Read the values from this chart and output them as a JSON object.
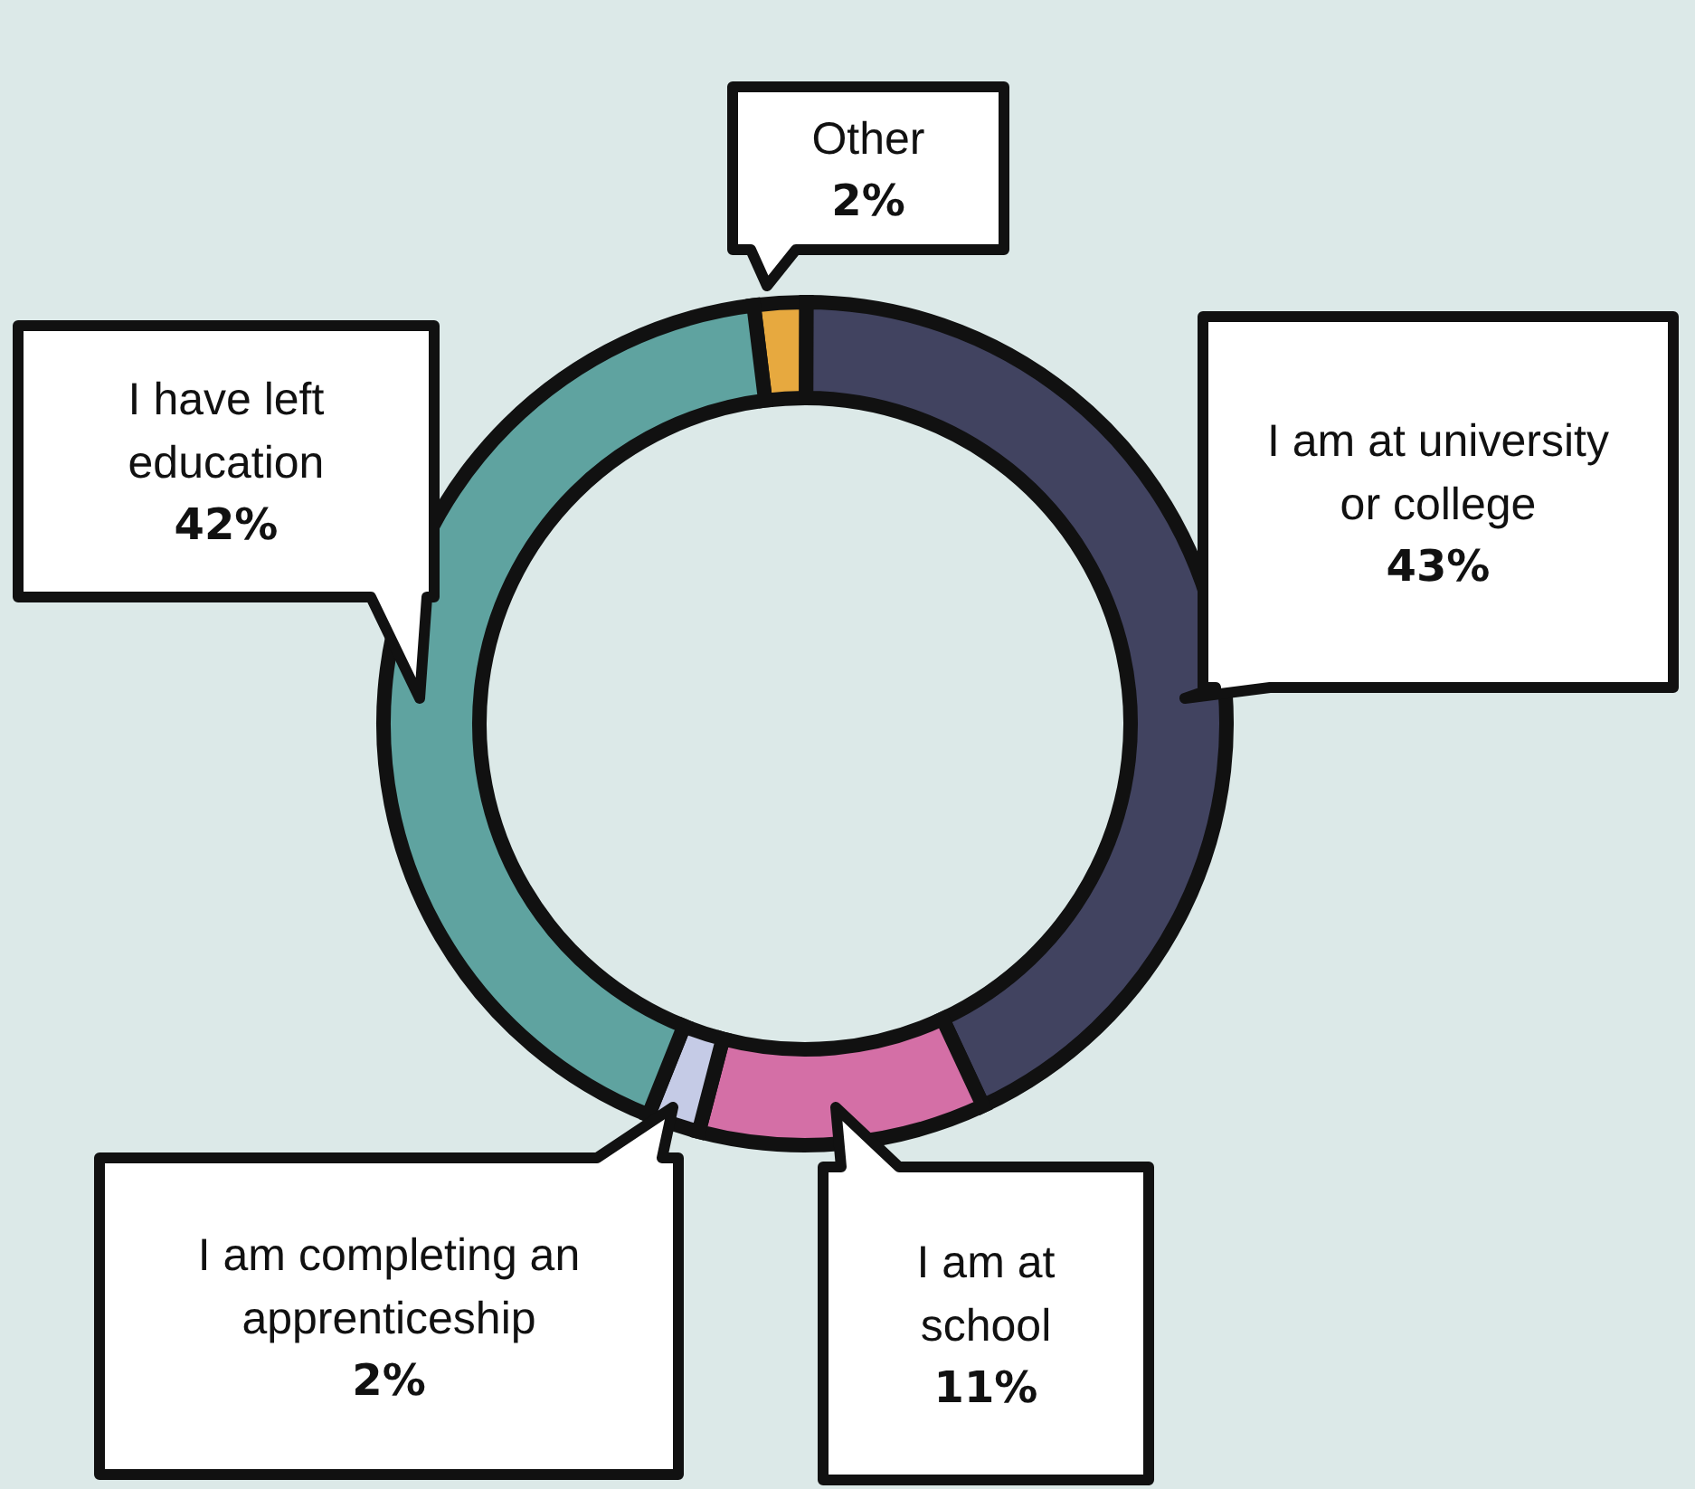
{
  "chart_data": {
    "type": "donut",
    "categories": [
      "Other",
      "I am at university or college",
      "I am at school",
      "I am completing an apprenticeship",
      "I have left education"
    ],
    "values": [
      2,
      43,
      11,
      2,
      42
    ],
    "value_labels": [
      "2%",
      "43%",
      "11%",
      "2%",
      "42%"
    ],
    "colors": [
      "#e7a93f",
      "#414360",
      "#d46fa6",
      "#c5cbe6",
      "#5fa3a0"
    ],
    "legend": false
  }
}
